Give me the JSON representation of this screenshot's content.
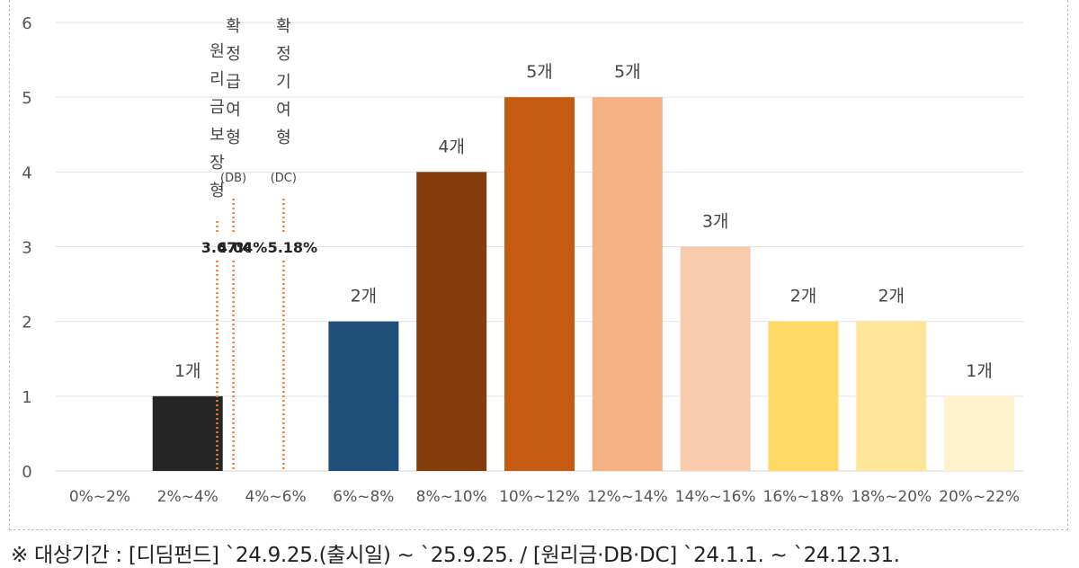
{
  "chart_data": {
    "type": "bar",
    "categories": [
      "0%~2%",
      "2%~4%",
      "4%~6%",
      "6%~8%",
      "8%~10%",
      "10%~12%",
      "12%~14%",
      "14%~16%",
      "16%~18%",
      "18%~20%",
      "20%~22%"
    ],
    "values": [
      0,
      1,
      0,
      2,
      4,
      5,
      5,
      3,
      2,
      2,
      1
    ],
    "data_labels": [
      "",
      "1개",
      "",
      "2개",
      "4개",
      "5개",
      "5개",
      "3개",
      "2개",
      "2개",
      "1개"
    ],
    "bar_colors": [
      "#ffffff",
      "#262626",
      "#ffffff",
      "#1f4e79",
      "#843c0c",
      "#c55a11",
      "#f4b183",
      "#f8cbad",
      "#ffd966",
      "#ffe699",
      "#fff2cc"
    ],
    "ylim": [
      0,
      6
    ],
    "yticks": [
      0,
      1,
      2,
      3,
      4,
      5,
      6
    ],
    "grid": true,
    "legend": "none",
    "annotations": [
      {
        "x": 3.67,
        "label_chars": [
          "원",
          "리",
          "금",
          "보",
          "장",
          "형"
        ],
        "sub": "",
        "value": "3.67%"
      },
      {
        "x": 4.04,
        "label_chars": [
          "확",
          "정",
          "급",
          "여",
          "형"
        ],
        "sub": "(DB)",
        "value": "4.04%"
      },
      {
        "x": 5.18,
        "label_chars": [
          "확",
          "정",
          "기",
          "여",
          "형"
        ],
        "sub": "(DC)",
        "value": "5.18%"
      }
    ],
    "annotation_color": "#ed7d31"
  },
  "footnote": "※ 대상기간 : [디딤펀드] `24.9.25.(출시일) ~ `25.9.25. / [원리금·DB·DC] `24.1.1. ~ `24.12.31."
}
